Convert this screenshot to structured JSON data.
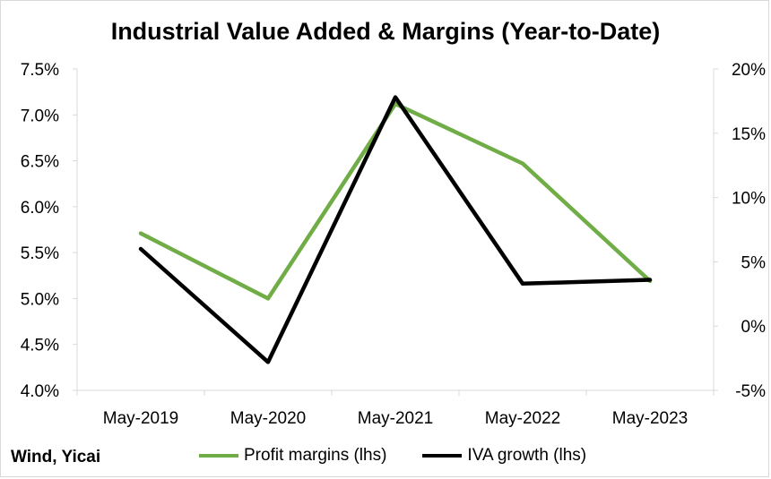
{
  "chart_data": {
    "type": "line",
    "title": "Industrial Value Added & Margins (Year-to-Date)",
    "categories": [
      "May-2019",
      "May-2020",
      "May-2021",
      "May-2022",
      "May-2023"
    ],
    "y_left": {
      "ticks": [
        "4.0%",
        "4.5%",
        "5.0%",
        "5.5%",
        "6.0%",
        "6.5%",
        "7.0%",
        "7.5%"
      ],
      "ylim": [
        4.0,
        7.5
      ]
    },
    "y_right": {
      "ticks": [
        "-5%",
        "0%",
        "5%",
        "10%",
        "15%",
        "20%"
      ],
      "ylim": [
        -5,
        20
      ]
    },
    "series": [
      {
        "name": "Profit margins (lhs)",
        "axis": "left",
        "color": "#70ad47",
        "values": [
          5.71,
          5.0,
          7.12,
          6.47,
          5.19
        ]
      },
      {
        "name": "IVA growth (lhs)",
        "axis": "right",
        "color": "#000000",
        "values": [
          6.0,
          -2.8,
          17.8,
          3.3,
          3.6
        ]
      }
    ],
    "grid": false,
    "legend_position": "bottom",
    "source": "Wind, Yicai"
  }
}
